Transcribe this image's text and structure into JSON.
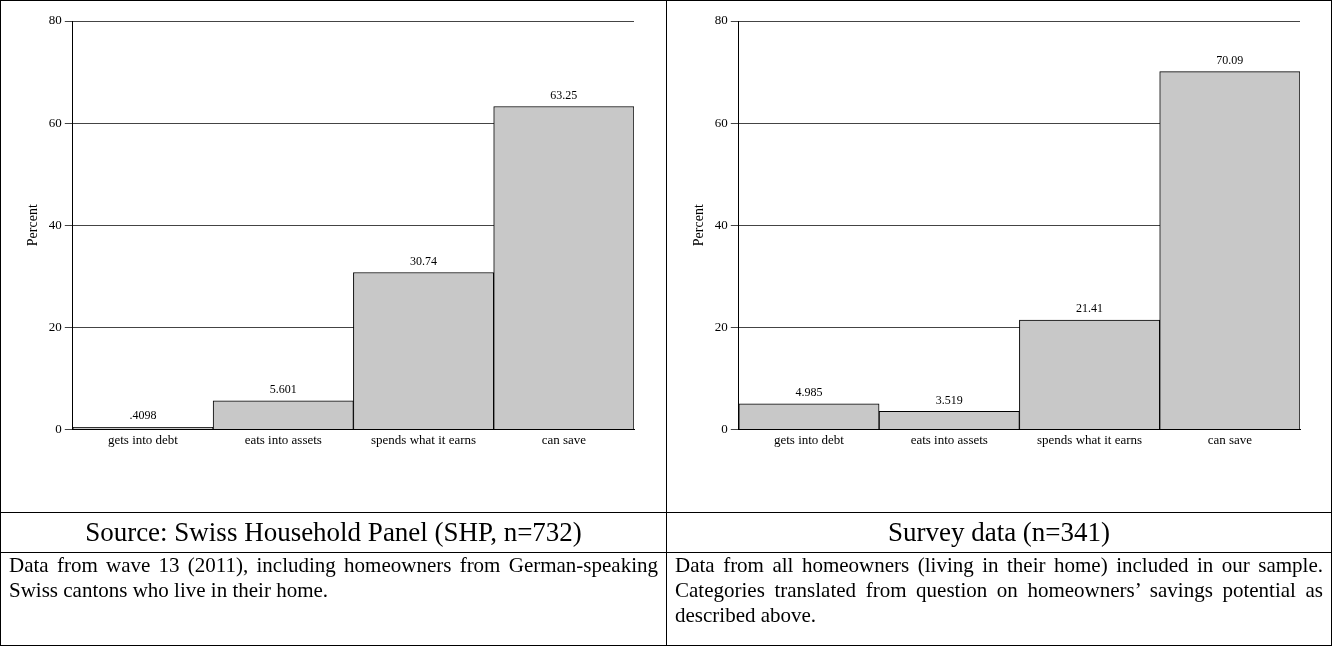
{
  "chart_data": [
    {
      "type": "bar",
      "title": "Source: Swiss Household Panel (SHP, n=732)",
      "ylabel": "Percent",
      "categories": [
        "gets into debt",
        "eats into assets",
        "spends what it earns",
        "can save"
      ],
      "values": [
        0.4098,
        5.601,
        30.74,
        63.25
      ],
      "value_labels": [
        ".4098",
        "5.601",
        "30.74",
        "63.25"
      ],
      "color": "#c8c8c8",
      "ylim": [
        0,
        80
      ],
      "yticks": [
        0,
        20,
        40,
        60,
        80
      ],
      "grid": "y",
      "annotations": [
        "Data from wave 13 (2011), including homeowners from German-speaking Swiss cantons who live in their home."
      ]
    },
    {
      "type": "bar",
      "title": "Survey data  (n=341)",
      "ylabel": "Percent",
      "categories": [
        "gets into debt",
        "eats into assets",
        "spends what it earns",
        "can save"
      ],
      "values": [
        4.985,
        3.519,
        21.41,
        70.09
      ],
      "value_labels": [
        "4.985",
        "3.519",
        "21.41",
        "70.09"
      ],
      "color": "#c8c8c8",
      "ylim": [
        0,
        80
      ],
      "yticks": [
        0,
        20,
        40,
        60,
        80
      ],
      "grid": "y",
      "annotations": [
        "Data from all homeowners (living in their home) included in our sample. Categories translated from question on homeowners’ savings potential as described above."
      ]
    }
  ]
}
